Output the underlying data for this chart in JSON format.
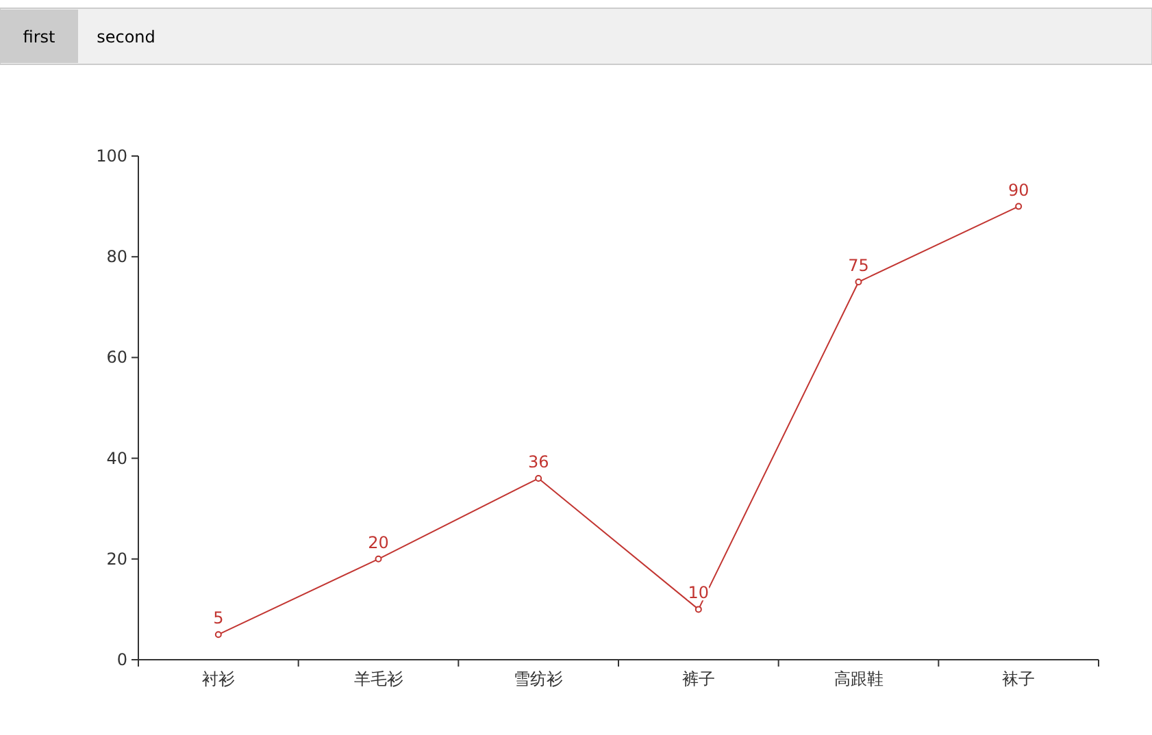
{
  "chart_data": {
    "type": "line",
    "categories": [
      "衬衫",
      "羊毛衫",
      "雪纺衫",
      "裤子",
      "高跟鞋",
      "袜子"
    ],
    "series": [
      {
        "color": "#c23531",
        "values": [
          5,
          20,
          36,
          10,
          75,
          90
        ]
      }
    ],
    "ylim": [
      0,
      100
    ],
    "yticks": [
      0,
      20,
      40,
      60,
      80,
      100
    ],
    "marker": "circle",
    "data_labels": true,
    "annotations": [
      "first",
      "second"
    ]
  }
}
